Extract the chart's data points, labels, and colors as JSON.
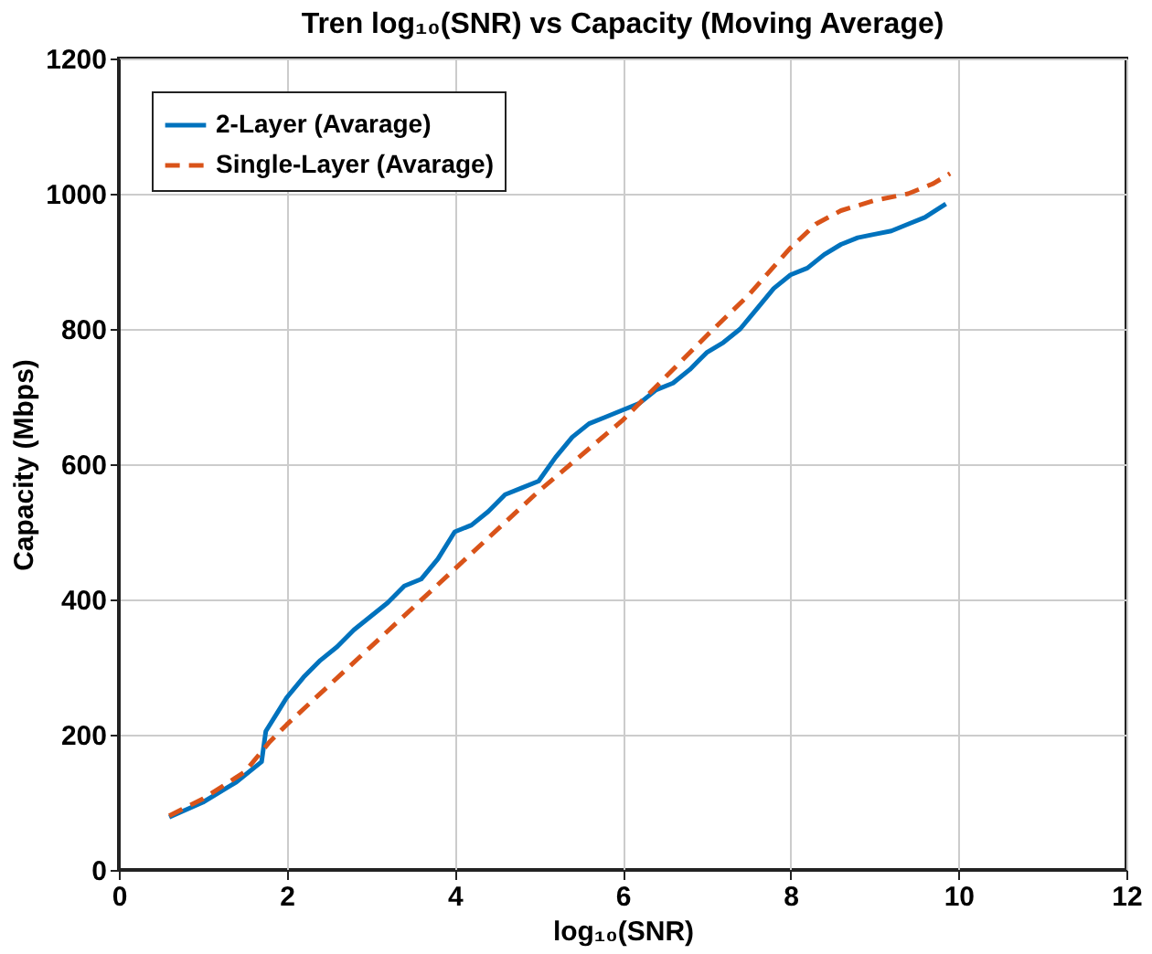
{
  "chart_data": {
    "type": "line",
    "title": "Tren log₁₀(SNR) vs Capacity (Moving Average)",
    "xlabel": "log₁₀(SNR)",
    "ylabel": "Capacity (Mbps)",
    "xlim": [
      0,
      12
    ],
    "xticks": [
      0,
      2,
      4,
      6,
      8,
      10,
      12
    ],
    "ylim": [
      0,
      1200
    ],
    "yticks": [
      0,
      200,
      400,
      600,
      800,
      1000,
      1200
    ],
    "grid": true,
    "legend": "top left",
    "series": [
      {
        "name": "2-Layer (Avarage)",
        "color": "#0072bd",
        "line_style": "solid",
        "x": [
          0.6,
          1.0,
          1.4,
          1.7,
          1.75,
          1.9,
          2.0,
          2.2,
          2.4,
          2.6,
          2.8,
          3.0,
          3.2,
          3.4,
          3.6,
          3.8,
          4.0,
          4.2,
          4.4,
          4.6,
          4.8,
          5.0,
          5.2,
          5.4,
          5.6,
          5.8,
          6.0,
          6.2,
          6.4,
          6.6,
          6.8,
          7.0,
          7.2,
          7.4,
          7.6,
          7.8,
          8.0,
          8.2,
          8.4,
          8.6,
          8.8,
          9.0,
          9.2,
          9.4,
          9.6,
          9.85
        ],
        "values": [
          78,
          100,
          130,
          160,
          205,
          235,
          255,
          285,
          310,
          330,
          355,
          375,
          395,
          420,
          430,
          460,
          500,
          510,
          530,
          555,
          565,
          575,
          610,
          640,
          660,
          670,
          680,
          690,
          710,
          720,
          740,
          765,
          780,
          800,
          830,
          860,
          880,
          890,
          910,
          925,
          935,
          940,
          945,
          955,
          965,
          985
        ]
      },
      {
        "name": "Single-Layer (Avarage)",
        "color": "#d95319",
        "line_style": "dashed",
        "x": [
          0.6,
          1.0,
          1.5,
          1.8,
          2.0,
          3.0,
          4.0,
          5.0,
          6.0,
          7.0,
          7.5,
          8.0,
          8.3,
          8.6,
          9.0,
          9.4,
          9.7,
          9.9
        ],
        "values": [
          80,
          105,
          145,
          190,
          215,
          330,
          445,
          560,
          665,
          790,
          850,
          920,
          955,
          975,
          990,
          1000,
          1015,
          1030
        ]
      }
    ]
  }
}
